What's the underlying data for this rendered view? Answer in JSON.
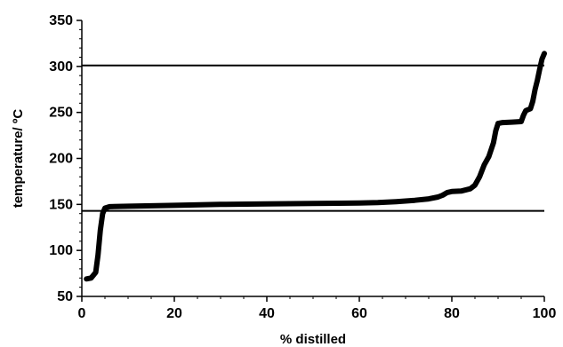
{
  "chart_data": {
    "type": "line",
    "title": "",
    "xlabel": "% distilled",
    "ylabel": "temperature/ ºC",
    "xlim": [
      0,
      100
    ],
    "ylim": [
      50,
      350
    ],
    "x_ticks": [
      0,
      20,
      40,
      60,
      80,
      100
    ],
    "y_ticks": [
      50,
      100,
      150,
      200,
      250,
      300,
      350
    ],
    "x_tick_labels": [
      "0",
      "20",
      "40",
      "60",
      "80",
      "100"
    ],
    "y_tick_labels": [
      "50",
      "100",
      "150",
      "200",
      "250",
      "300",
      "350"
    ],
    "grid": false,
    "legend": "none",
    "reference_lines": [
      {
        "axis": "y",
        "value": 301
      },
      {
        "axis": "y",
        "value": 143
      }
    ],
    "series": [
      {
        "color": "#000000",
        "points": [
          [
            1,
            69
          ],
          [
            2,
            70
          ],
          [
            3,
            76
          ],
          [
            3.5,
            95
          ],
          [
            4,
            122
          ],
          [
            4.5,
            140
          ],
          [
            5,
            146
          ],
          [
            6,
            147.5
          ],
          [
            10,
            148
          ],
          [
            20,
            149
          ],
          [
            30,
            150
          ],
          [
            40,
            150.5
          ],
          [
            50,
            151
          ],
          [
            60,
            151.5
          ],
          [
            64,
            152
          ],
          [
            68,
            153
          ],
          [
            72,
            154.5
          ],
          [
            75,
            156
          ],
          [
            77,
            158
          ],
          [
            78,
            160
          ],
          [
            79,
            163
          ],
          [
            80,
            164
          ],
          [
            82,
            164.5
          ],
          [
            84,
            167
          ],
          [
            85,
            171
          ],
          [
            86,
            180
          ],
          [
            87,
            193
          ],
          [
            88,
            202
          ],
          [
            89,
            217
          ],
          [
            89.5,
            230
          ],
          [
            90,
            238
          ],
          [
            91,
            239
          ],
          [
            93,
            239.5
          ],
          [
            95,
            240
          ],
          [
            95.5,
            247
          ],
          [
            96,
            252
          ],
          [
            97,
            254
          ],
          [
            97.5,
            262
          ],
          [
            98,
            275
          ],
          [
            98.5,
            285
          ],
          [
            99,
            297
          ],
          [
            99.5,
            308
          ],
          [
            100,
            314
          ]
        ]
      }
    ]
  }
}
